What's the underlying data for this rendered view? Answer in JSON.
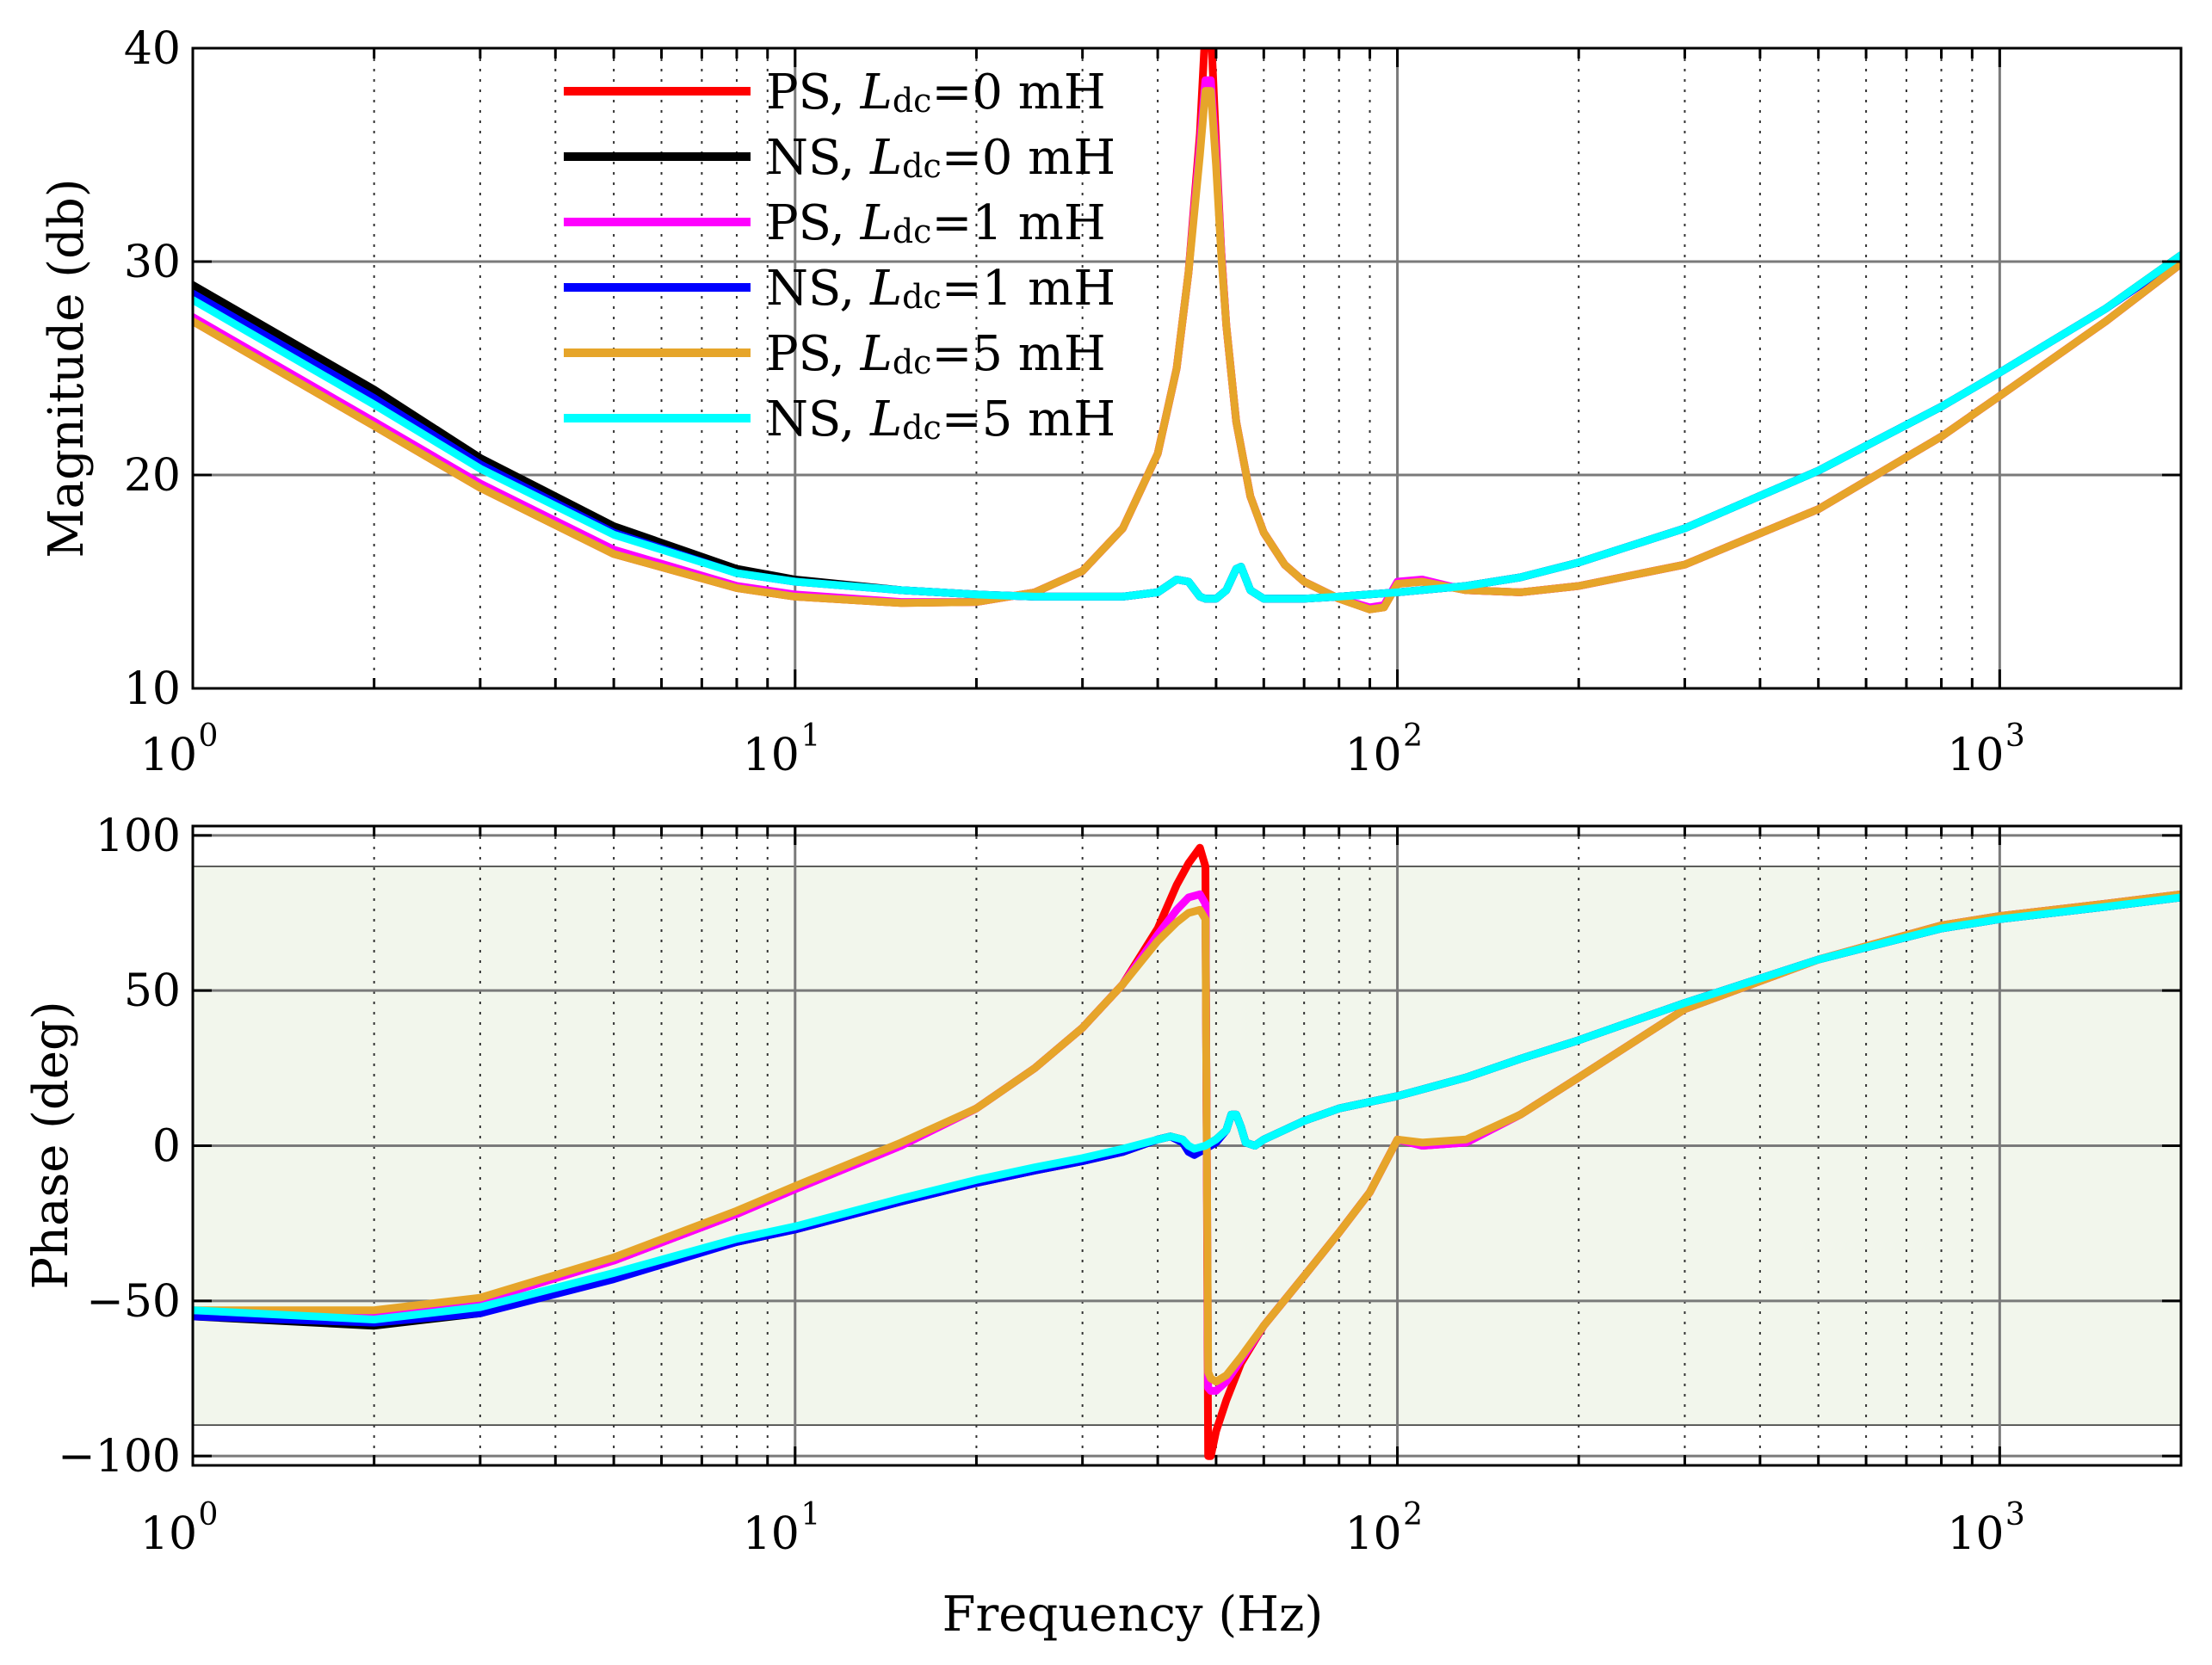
{
  "chart_data": [
    {
      "type": "line",
      "name": "magnitude",
      "ylabel": "Magnitude (db)",
      "xlabel": "",
      "x_scale": "log",
      "xlim": [
        1,
        2000
      ],
      "ylim": [
        10,
        40
      ],
      "yticks": [
        10,
        20,
        30,
        40
      ],
      "xtick_labels": [
        {
          "base": "10",
          "exp": "0"
        },
        {
          "base": "10",
          "exp": "1"
        },
        {
          "base": "10",
          "exp": "2"
        },
        {
          "base": "10",
          "exp": "3"
        }
      ],
      "grid": true,
      "legend": {
        "placement": "top-center",
        "entries": [
          {
            "seq": "PS",
            "sub": "dc",
            "value": "=0 mH",
            "color": "#ff0000"
          },
          {
            "seq": "NS",
            "sub": "dc",
            "value": "=0 mH",
            "color": "#000000"
          },
          {
            "seq": "PS",
            "sub": "dc",
            "value": "=1 mH",
            "color": "#ff00ff"
          },
          {
            "seq": "NS",
            "sub": "dc",
            "value": "=1 mH",
            "color": "#0000ff"
          },
          {
            "seq": "PS",
            "sub": "dc",
            "value": "=5 mH",
            "color": "#e6a52a"
          },
          {
            "seq": "NS",
            "sub": "dc",
            "value": "=5 mH",
            "color": "#00ffff"
          }
        ],
        "symbol": "L"
      },
      "series": [
        {
          "name": "PS, Ldc=0 mH",
          "color": "#ff0000",
          "x": [
            1,
            2,
            3,
            5,
            8,
            10,
            15,
            20,
            25,
            30,
            35,
            40,
            43,
            45,
            47,
            48,
            49,
            50,
            51,
            52,
            54,
            57,
            60,
            65,
            70,
            80,
            90,
            95,
            100,
            110,
            130,
            160,
            200,
            300,
            500,
            800,
            1000,
            1500,
            2000
          ],
          "y": [
            27.2,
            22.3,
            19.4,
            16.3,
            14.7,
            14.3,
            14.0,
            14.05,
            14.5,
            15.5,
            17.5,
            21.0,
            25.0,
            29.5,
            36.0,
            41.0,
            41.0,
            35.5,
            30.5,
            27.0,
            22.5,
            19.0,
            17.3,
            15.8,
            15.0,
            14.2,
            13.7,
            13.8,
            14.9,
            15.0,
            14.6,
            14.5,
            14.8,
            15.8,
            18.4,
            21.8,
            23.7,
            27.2,
            29.9
          ]
        },
        {
          "name": "NS, Ldc=0 mH",
          "color": "#000000",
          "x": [
            1,
            2,
            3,
            5,
            8,
            10,
            15,
            20,
            25,
            30,
            35,
            40,
            43,
            45,
            47,
            48,
            50,
            52,
            54,
            55,
            57,
            60,
            70,
            80,
            100,
            130,
            160,
            200,
            300,
            500,
            800,
            1000,
            1500,
            2000
          ],
          "y": [
            28.9,
            24.0,
            20.8,
            17.6,
            15.6,
            15.1,
            14.6,
            14.4,
            14.3,
            14.3,
            14.3,
            14.5,
            15.1,
            15.0,
            14.3,
            14.2,
            14.2,
            14.6,
            15.6,
            15.7,
            14.6,
            14.2,
            14.2,
            14.3,
            14.5,
            14.8,
            15.2,
            15.9,
            17.5,
            20.2,
            23.2,
            24.8,
            27.8,
            30.3
          ]
        },
        {
          "name": "PS, Ldc=1 mH",
          "color": "#ff00ff",
          "x": [
            1,
            2,
            3,
            5,
            8,
            10,
            15,
            20,
            25,
            30,
            35,
            40,
            43,
            45,
            47,
            48,
            49,
            50,
            51,
            52,
            54,
            57,
            60,
            65,
            70,
            80,
            90,
            95,
            100,
            110,
            130,
            160,
            200,
            300,
            500,
            800,
            1000,
            1500,
            2000
          ],
          "y": [
            27.4,
            22.5,
            19.6,
            16.5,
            14.8,
            14.4,
            14.05,
            14.05,
            14.5,
            15.5,
            17.5,
            21.0,
            25.0,
            29.5,
            35.5,
            38.5,
            38.5,
            35.0,
            30.5,
            27.0,
            22.5,
            19.0,
            17.3,
            15.8,
            15.0,
            14.2,
            13.8,
            13.9,
            15.0,
            15.1,
            14.6,
            14.5,
            14.8,
            15.8,
            18.4,
            21.8,
            23.7,
            27.2,
            29.9
          ]
        },
        {
          "name": "NS, Ldc=1 mH",
          "color": "#0000ff",
          "x": [
            1,
            2,
            3,
            5,
            8,
            10,
            15,
            20,
            25,
            30,
            35,
            40,
            43,
            45,
            47,
            48,
            50,
            52,
            54,
            55,
            57,
            60,
            70,
            80,
            100,
            130,
            160,
            200,
            300,
            500,
            800,
            1000,
            1500,
            2000
          ],
          "y": [
            28.5,
            23.6,
            20.5,
            17.3,
            15.4,
            15.0,
            14.6,
            14.4,
            14.3,
            14.3,
            14.3,
            14.5,
            15.1,
            15.0,
            14.3,
            14.2,
            14.2,
            14.6,
            15.6,
            15.7,
            14.6,
            14.2,
            14.2,
            14.3,
            14.5,
            14.8,
            15.2,
            15.9,
            17.5,
            20.2,
            23.2,
            24.8,
            27.8,
            30.2
          ]
        },
        {
          "name": "PS, Ldc=5 mH",
          "color": "#e6a52a",
          "x": [
            1,
            2,
            3,
            5,
            8,
            10,
            15,
            20,
            25,
            30,
            35,
            40,
            43,
            45,
            47,
            48,
            49,
            50,
            51,
            52,
            54,
            57,
            60,
            65,
            70,
            80,
            90,
            95,
            100,
            110,
            130,
            160,
            200,
            300,
            500,
            800,
            1000,
            1500,
            2000
          ],
          "y": [
            27.2,
            22.3,
            19.4,
            16.3,
            14.7,
            14.3,
            14.0,
            14.05,
            14.5,
            15.5,
            17.5,
            21.0,
            25.0,
            29.5,
            35.0,
            38.0,
            38.0,
            34.5,
            30.3,
            27.0,
            22.5,
            19.0,
            17.3,
            15.8,
            15.0,
            14.2,
            13.7,
            13.8,
            14.9,
            15.0,
            14.6,
            14.5,
            14.8,
            15.8,
            18.4,
            21.8,
            23.7,
            27.2,
            29.9
          ]
        },
        {
          "name": "NS, Ldc=5 mH",
          "color": "#00ffff",
          "x": [
            1,
            2,
            3,
            5,
            8,
            10,
            15,
            20,
            25,
            30,
            35,
            40,
            43,
            45,
            47,
            48,
            50,
            52,
            54,
            55,
            57,
            60,
            70,
            80,
            100,
            130,
            160,
            200,
            300,
            500,
            800,
            1000,
            1500,
            2000
          ],
          "y": [
            28.2,
            23.3,
            20.3,
            17.2,
            15.4,
            15.0,
            14.6,
            14.4,
            14.3,
            14.3,
            14.3,
            14.5,
            15.1,
            15.0,
            14.3,
            14.2,
            14.2,
            14.6,
            15.6,
            15.7,
            14.6,
            14.2,
            14.2,
            14.3,
            14.5,
            14.8,
            15.2,
            15.9,
            17.5,
            20.2,
            23.2,
            24.8,
            27.8,
            30.3
          ]
        }
      ]
    },
    {
      "type": "line",
      "name": "phase",
      "ylabel": "Phase (deg)",
      "xlabel": "Frequency (Hz)",
      "x_scale": "log",
      "xlim": [
        1,
        2000
      ],
      "ylim": [
        -103,
        103
      ],
      "yticks": [
        -100,
        -50,
        0,
        50,
        100
      ],
      "ytick_labels": [
        "−100",
        "−50",
        "0",
        "50",
        "100"
      ],
      "xtick_labels": [
        {
          "base": "10",
          "exp": "0"
        },
        {
          "base": "10",
          "exp": "1"
        },
        {
          "base": "10",
          "exp": "2"
        },
        {
          "base": "10",
          "exp": "3"
        }
      ],
      "stable_band": [
        -90,
        90
      ],
      "band_color": "#f2f6ec",
      "grid": true,
      "series": [
        {
          "name": "PS, Ldc=0 mH",
          "color": "#ff0000",
          "x": [
            1,
            2,
            3,
            5,
            8,
            10,
            15,
            20,
            25,
            30,
            35,
            40,
            43,
            45,
            47,
            48,
            48.5,
            49,
            50,
            52,
            55,
            60,
            70,
            80,
            90,
            100,
            110,
            130,
            160,
            200,
            300,
            500,
            800,
            1000,
            1500,
            2000
          ],
          "y": [
            -55,
            -55,
            -50,
            -37,
            -22,
            -14,
            0,
            12,
            25,
            38,
            52,
            70,
            84,
            91,
            96,
            90,
            -100,
            -100,
            -92,
            -82,
            -70,
            -58,
            -42,
            -28,
            -15,
            2,
            0,
            1,
            10,
            22,
            44,
            60,
            71,
            74,
            78,
            81
          ]
        },
        {
          "name": "NS, Ldc=0 mH",
          "color": "#000000",
          "x": [
            1,
            2,
            3,
            5,
            8,
            10,
            15,
            20,
            25,
            30,
            35,
            40,
            42,
            44,
            45,
            46,
            48,
            50,
            52,
            53,
            54,
            55,
            56,
            58,
            60,
            70,
            80,
            100,
            130,
            160,
            200,
            300,
            500,
            800,
            1000,
            1500,
            2000
          ],
          "y": [
            -55,
            -58,
            -54,
            -42,
            -31,
            -27,
            -18,
            -12,
            -8,
            -5,
            -2,
            2,
            3,
            2,
            -1,
            -2,
            0,
            2,
            5,
            10,
            10,
            6,
            1,
            0,
            2,
            8,
            12,
            16,
            22,
            28,
            34,
            46,
            60,
            70,
            73,
            77,
            80
          ]
        },
        {
          "name": "PS, Ldc=1 mH",
          "color": "#ff00ff",
          "x": [
            1,
            2,
            3,
            5,
            8,
            10,
            15,
            20,
            25,
            30,
            35,
            40,
            43,
            45,
            47,
            48,
            48.5,
            49,
            50,
            52,
            55,
            60,
            70,
            80,
            90,
            100,
            110,
            130,
            160,
            200,
            300,
            500,
            800,
            1000,
            1500,
            2000
          ],
          "y": [
            -54,
            -54,
            -50,
            -37,
            -22,
            -14,
            0,
            12,
            25,
            38,
            52,
            68,
            76,
            80,
            81,
            78,
            -78,
            -79,
            -79,
            -76,
            -69,
            -58,
            -42,
            -28,
            -15,
            2,
            0,
            1,
            10,
            22,
            44,
            60,
            71,
            74,
            78,
            81
          ]
        },
        {
          "name": "NS, Ldc=1 mH",
          "color": "#0000ff",
          "x": [
            1,
            2,
            3,
            5,
            8,
            10,
            15,
            20,
            25,
            30,
            35,
            40,
            42,
            44,
            45,
            46,
            48,
            50,
            52,
            53,
            54,
            55,
            56,
            58,
            60,
            70,
            80,
            100,
            130,
            160,
            200,
            300,
            500,
            800,
            1000,
            1500,
            2000
          ],
          "y": [
            -55,
            -57,
            -54,
            -43,
            -31,
            -27,
            -18,
            -12,
            -8,
            -5,
            -2,
            2,
            3,
            1,
            -2,
            -3,
            -1,
            1,
            5,
            10,
            10,
            6,
            1,
            0,
            2,
            8,
            12,
            16,
            22,
            28,
            34,
            46,
            60,
            70,
            73,
            77,
            80
          ]
        },
        {
          "name": "PS, Ldc=5 mH",
          "color": "#e6a52a",
          "x": [
            1,
            2,
            3,
            5,
            8,
            10,
            15,
            20,
            25,
            30,
            35,
            40,
            43,
            45,
            47,
            48,
            48.5,
            49,
            50,
            52,
            55,
            60,
            70,
            80,
            90,
            100,
            110,
            130,
            160,
            200,
            300,
            500,
            800,
            1000,
            1500,
            2000
          ],
          "y": [
            -53,
            -53,
            -49,
            -36,
            -21,
            -13,
            1,
            12,
            25,
            38,
            52,
            66,
            72,
            75,
            76,
            73,
            -73,
            -75,
            -76,
            -74,
            -68,
            -58,
            -42,
            -28,
            -15,
            2,
            1,
            2,
            10,
            22,
            44,
            60,
            71,
            74,
            78,
            81
          ]
        },
        {
          "name": "NS, Ldc=5 mH",
          "color": "#00ffff",
          "x": [
            1,
            2,
            3,
            5,
            8,
            10,
            15,
            20,
            25,
            30,
            35,
            40,
            42,
            44,
            45,
            46,
            48,
            50,
            52,
            53,
            54,
            55,
            56,
            58,
            60,
            70,
            80,
            100,
            130,
            160,
            200,
            300,
            500,
            800,
            1000,
            1500,
            2000
          ],
          "y": [
            -53,
            -56,
            -52,
            -41,
            -30,
            -26,
            -17,
            -11,
            -7,
            -4,
            -1,
            2,
            3,
            2,
            0,
            -1,
            0,
            2,
            5,
            10,
            10,
            6,
            1,
            0,
            2,
            8,
            12,
            16,
            22,
            28,
            34,
            46,
            60,
            70,
            73,
            77,
            80
          ]
        }
      ]
    }
  ]
}
